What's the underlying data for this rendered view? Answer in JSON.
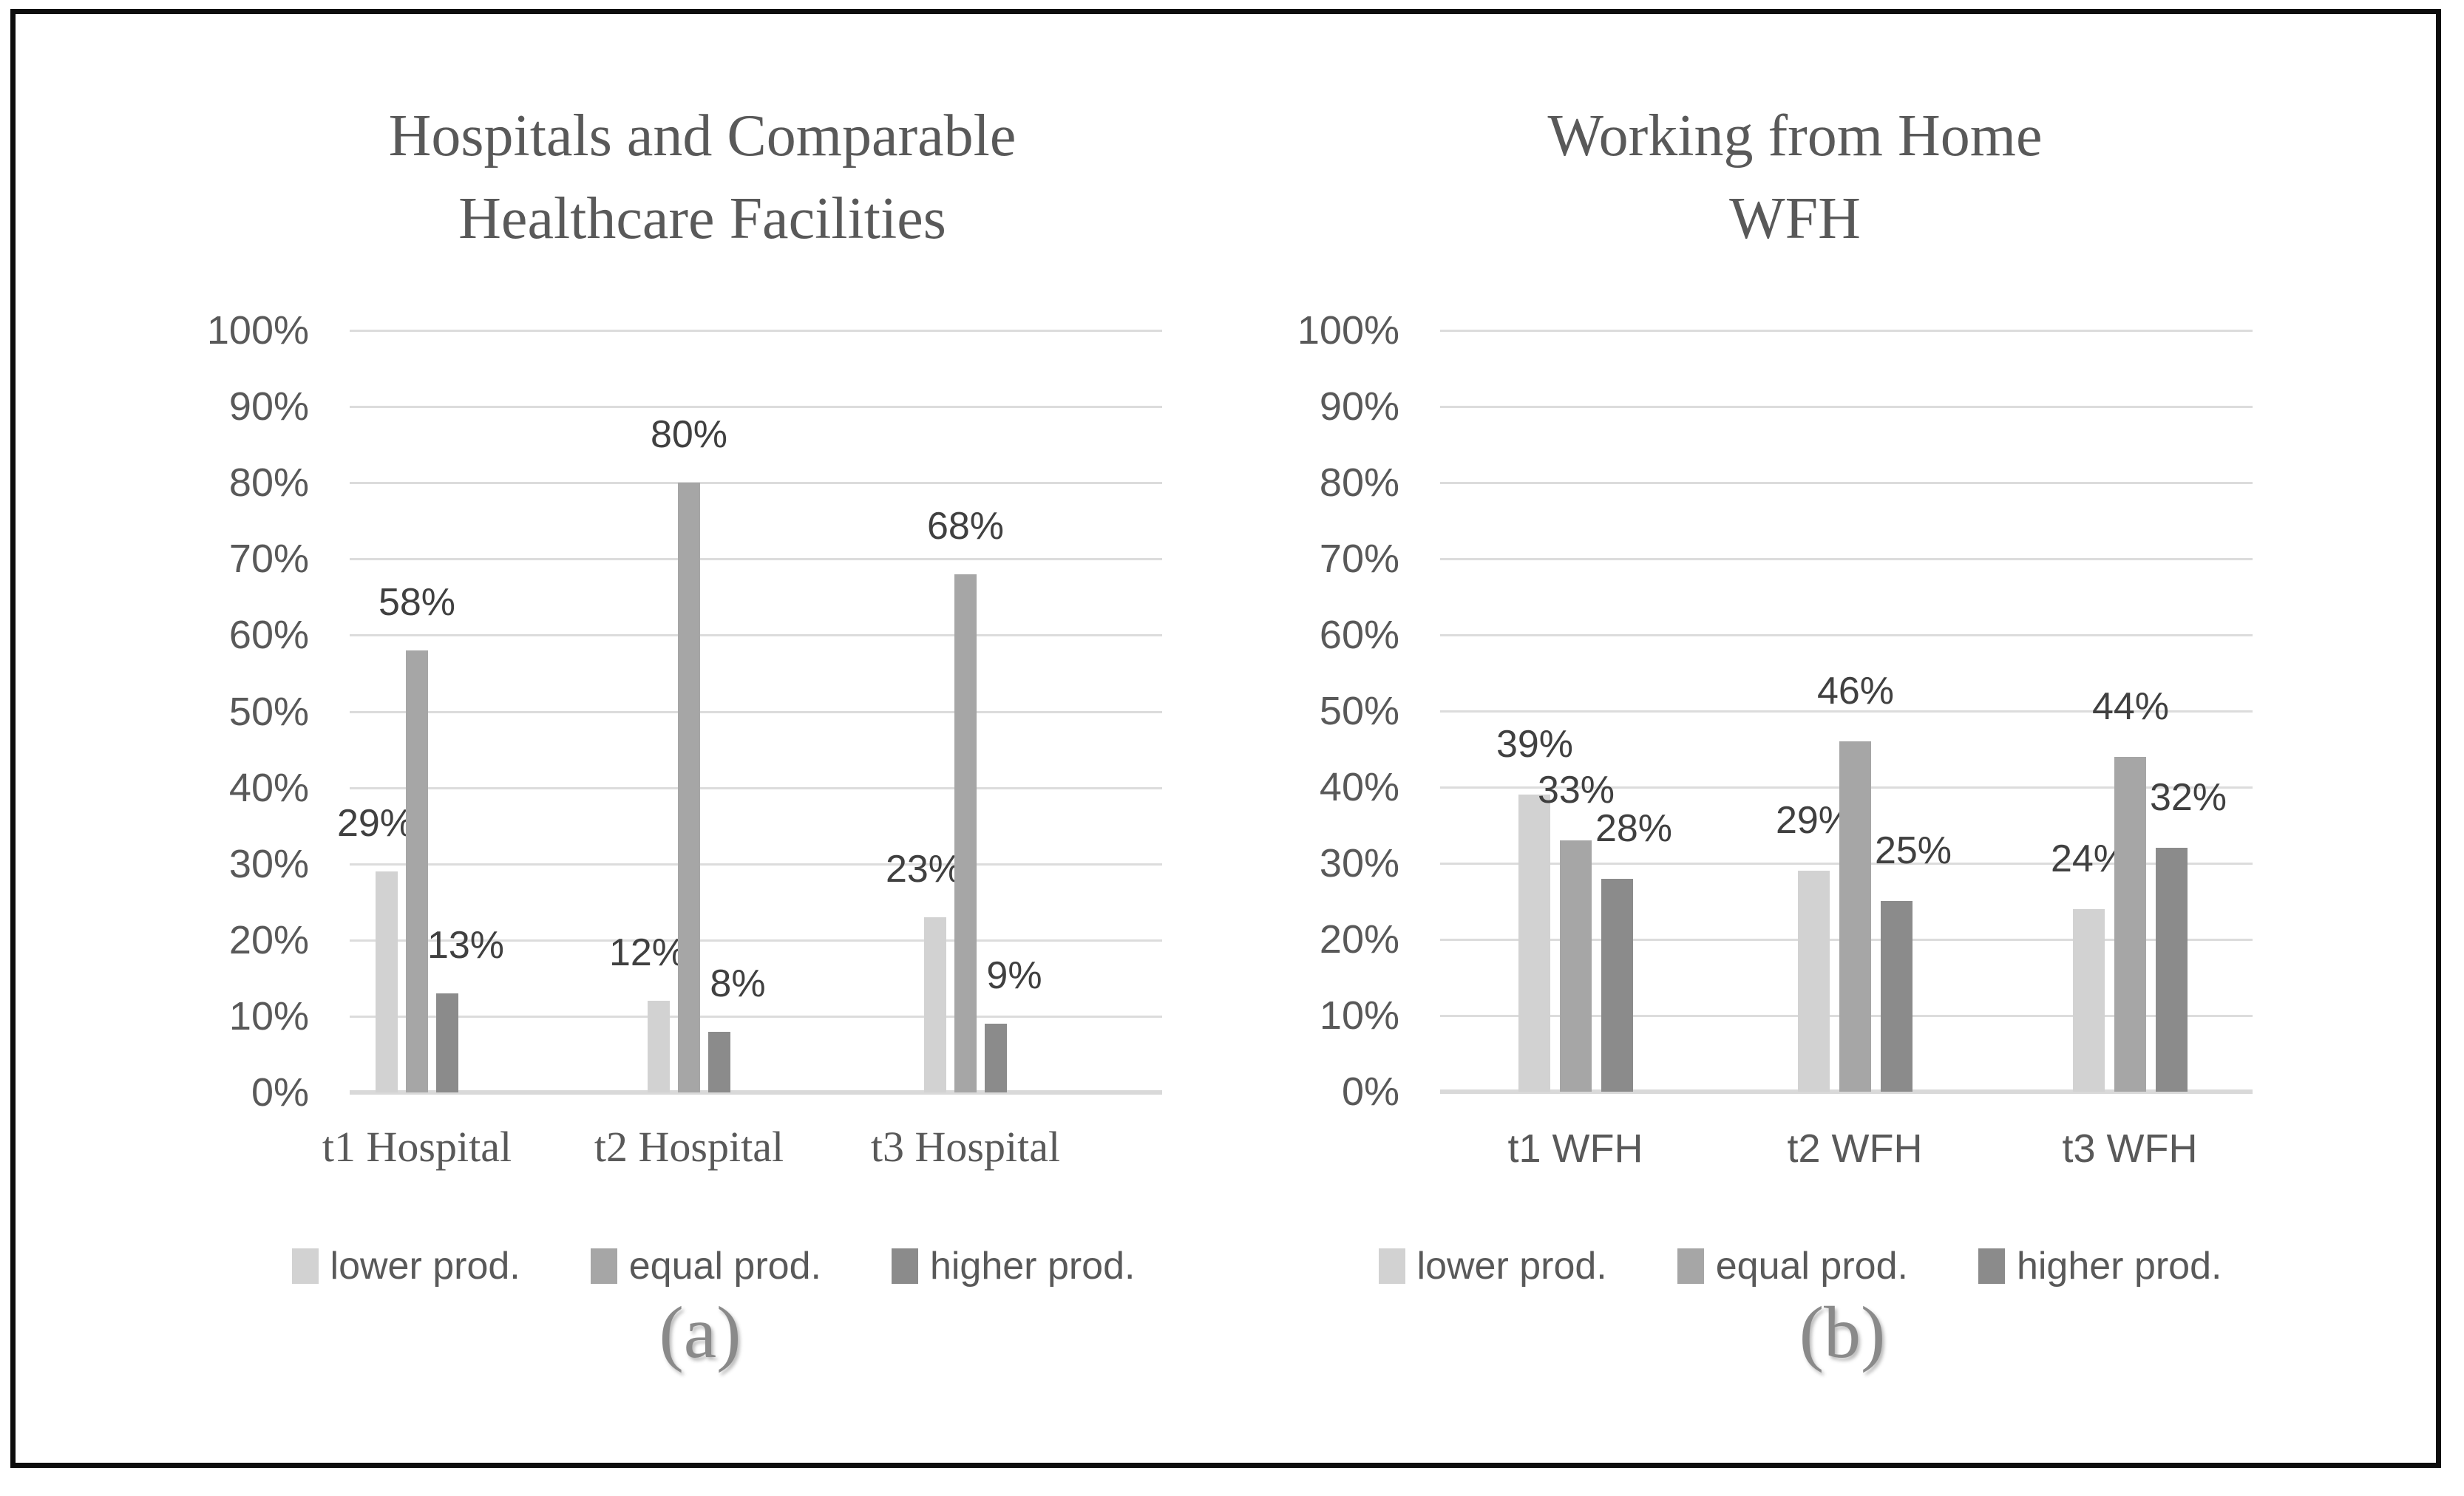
{
  "figure": {
    "caption_a": "(a)",
    "caption_b": "(b)"
  },
  "palette": {
    "series": [
      "#d2d2d2",
      "#a6a6a6",
      "#8b8b8b"
    ],
    "gridline": "#dcdcdc",
    "axis_line": "#d9d9d9",
    "tick_text": "#595959",
    "data_label_text": "#404040",
    "title_text": "#595959",
    "caption_text": "#8a8a8a",
    "frame_border": "#0d0d0d"
  },
  "chart_data": [
    {
      "type": "bar",
      "title": "Hospitals and Comparable Healthcare Facilities",
      "title_lines": [
        "Hospitals and Comparable",
        "Healthcare Facilities"
      ],
      "caption": "(a)",
      "categories": [
        "t1 Hospital",
        "t2 Hospital",
        "t3 Hospital"
      ],
      "series": [
        {
          "name": "lower prod.",
          "values": [
            29,
            12,
            23
          ]
        },
        {
          "name": "equal prod.",
          "values": [
            58,
            80,
            68
          ]
        },
        {
          "name": "higher prod.",
          "values": [
            13,
            8,
            9
          ]
        }
      ],
      "data_labels": [
        [
          "29%",
          "12%",
          "23%"
        ],
        [
          "58%",
          "80%",
          "68%"
        ],
        [
          "13%",
          "8%",
          "9%"
        ]
      ],
      "ylim": [
        0,
        100
      ],
      "y_ticks_percent": [
        100,
        90,
        80,
        70,
        60,
        50,
        40,
        30,
        20,
        10,
        0
      ],
      "grid": true,
      "legend_position": "bottom",
      "data_label_format": "percent"
    },
    {
      "type": "bar",
      "title": "Working from Home WFH",
      "title_lines": [
        "Working from Home",
        "WFH"
      ],
      "caption": "(b)",
      "categories": [
        "t1 WFH",
        "t2 WFH",
        "t3 WFH"
      ],
      "series": [
        {
          "name": "lower prod.",
          "values": [
            39,
            29,
            24
          ]
        },
        {
          "name": "equal prod.",
          "values": [
            33,
            46,
            44
          ]
        },
        {
          "name": "higher prod.",
          "values": [
            28,
            25,
            32
          ]
        }
      ],
      "data_labels": [
        [
          "39%",
          "29%",
          "24%"
        ],
        [
          "33%",
          "46%",
          "44%"
        ],
        [
          "28%",
          "25%",
          "32%"
        ]
      ],
      "ylim": [
        0,
        100
      ],
      "y_ticks_percent": [
        100,
        90,
        80,
        70,
        60,
        50,
        40,
        30,
        20,
        10,
        0
      ],
      "grid": true,
      "legend_position": "bottom",
      "data_label_format": "percent"
    }
  ]
}
